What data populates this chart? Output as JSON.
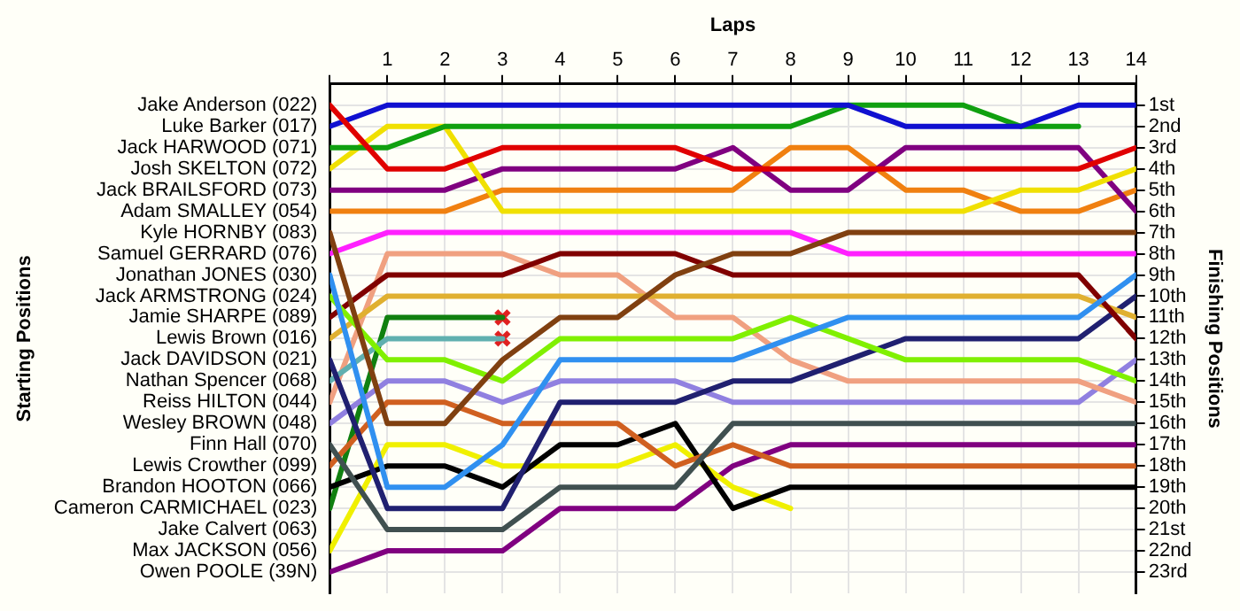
{
  "chart_data": {
    "type": "line",
    "xlabel": "Laps",
    "ylabel": "Finishing Positions",
    "annotations": [
      "Starting Positions"
    ],
    "x": [
      0,
      1,
      2,
      3,
      4,
      5,
      6,
      7,
      8,
      9,
      10,
      11,
      12,
      13,
      14
    ],
    "xlim": [
      0,
      14
    ],
    "xticks": [
      {
        "value": 0,
        "label": null
      },
      1,
      2,
      3,
      4,
      5,
      6,
      7,
      8,
      9,
      10,
      11,
      12,
      13,
      14
    ],
    "y2_categories": [
      "Jake Anderson (022)",
      "Luke Barker (017)",
      "Jack HARWOOD (071)",
      "Josh SKELTON (072)",
      "Jack BRAILSFORD (073)",
      "Adam SMALLEY (054)",
      "Kyle HORNBY (083)",
      "Samuel GERRARD (076)",
      "Jonathan JONES (030)",
      "Jack ARMSTRONG (024)",
      "Jamie SHARPE (089)",
      "Lewis Brown (016)",
      "Jack DAVIDSON (021)",
      "Nathan Spencer (068)",
      "Reiss HILTON (044)",
      "Wesley BROWN (048)",
      "Finn Hall (070)",
      "Lewis Crowther (099)",
      "Brandon HOOTON (066)",
      "Cameron CARMICHAEL (023)",
      "Jake Calvert (063)",
      "Max JACKSON (056)",
      "Owen POOLE (39N)"
    ],
    "ylim": [
      24,
      0
    ],
    "yticks": [
      {
        "value": 1,
        "label": "1st"
      },
      {
        "value": 2,
        "label": "2nd"
      },
      {
        "value": 3,
        "label": "3rd"
      },
      {
        "value": 4,
        "label": "4th"
      },
      {
        "value": 5,
        "label": "5th"
      },
      {
        "value": 6,
        "label": "6th"
      },
      {
        "value": 7,
        "label": "7th"
      },
      {
        "value": 8,
        "label": "8th"
      },
      {
        "value": 9,
        "label": "9th"
      },
      {
        "value": 10,
        "label": "10th"
      },
      {
        "value": 11,
        "label": "11th"
      },
      {
        "value": 12,
        "label": "12th"
      },
      {
        "value": 13,
        "label": "13th"
      },
      {
        "value": 14,
        "label": "14th"
      },
      {
        "value": 15,
        "label": "15th"
      },
      {
        "value": 16,
        "label": "16th"
      },
      {
        "value": 17,
        "label": "17th"
      },
      {
        "value": 18,
        "label": "18th"
      },
      {
        "value": 19,
        "label": "19th"
      },
      {
        "value": 20,
        "label": "20th"
      },
      {
        "value": 21,
        "label": "21st"
      },
      {
        "value": 22,
        "label": "22nd"
      },
      {
        "value": 23,
        "label": "23rd"
      }
    ],
    "grid": true,
    "series": [
      {
        "color": "#e00000",
        "values": [
          1,
          4,
          4,
          3,
          3,
          3,
          3,
          4,
          4,
          4,
          4,
          4,
          4,
          4,
          3
        ]
      },
      {
        "color": "#1010d0",
        "values": [
          2,
          1,
          1,
          1,
          1,
          1,
          1,
          1,
          1,
          1,
          2,
          2,
          2,
          1,
          1
        ]
      },
      {
        "color": "#10a010",
        "values": [
          3,
          3,
          2,
          2,
          2,
          2,
          2,
          2,
          2,
          1,
          1,
          1,
          2,
          2,
          null
        ]
      },
      {
        "color": "#f0e000",
        "values": [
          4,
          2,
          2,
          6,
          6,
          6,
          6,
          6,
          6,
          6,
          6,
          6,
          5,
          5,
          4
        ]
      },
      {
        "color": "#800080",
        "values": [
          5,
          5,
          5,
          4,
          4,
          4,
          4,
          3,
          5,
          5,
          3,
          3,
          3,
          3,
          6
        ]
      },
      {
        "color": "#f08010",
        "values": [
          6,
          6,
          6,
          5,
          5,
          5,
          5,
          5,
          3,
          3,
          5,
          5,
          6,
          6,
          5
        ]
      },
      {
        "color": "#804010",
        "values": [
          7,
          16,
          16,
          13,
          11,
          11,
          9,
          8,
          8,
          7,
          7,
          7,
          7,
          7,
          7
        ]
      },
      {
        "color": "#ff20ff",
        "values": [
          8,
          7,
          7,
          7,
          7,
          7,
          7,
          7,
          7,
          8,
          8,
          8,
          8,
          8,
          8
        ]
      },
      {
        "color": "#3090f0",
        "values": [
          9,
          19,
          19,
          17,
          13,
          13,
          13,
          13,
          12,
          11,
          11,
          11,
          11,
          11,
          9
        ]
      },
      {
        "color": "#80f000",
        "values": [
          10,
          13,
          13,
          14,
          12,
          12,
          12,
          12,
          11,
          12,
          13,
          13,
          13,
          13,
          14
        ]
      },
      {
        "color": "#800000",
        "values": [
          11,
          9,
          9,
          9,
          8,
          8,
          8,
          9,
          9,
          9,
          9,
          9,
          9,
          9,
          12
        ]
      },
      {
        "color": "#e0b030",
        "values": [
          12,
          10,
          10,
          10,
          10,
          10,
          10,
          10,
          10,
          10,
          10,
          10,
          10,
          10,
          11
        ]
      },
      {
        "color": "#202070",
        "values": [
          13,
          20,
          20,
          20,
          15,
          15,
          15,
          14,
          14,
          13,
          12,
          12,
          12,
          12,
          10
        ]
      },
      {
        "color": "#60b0b0",
        "values": [
          14,
          12,
          12,
          12,
          null,
          null,
          null,
          null,
          null,
          null,
          null,
          null,
          null,
          null,
          null
        ]
      },
      {
        "color": "#f0a080",
        "values": [
          15,
          8,
          8,
          8,
          9,
          9,
          11,
          11,
          13,
          14,
          14,
          14,
          14,
          14,
          15
        ]
      },
      {
        "color": "#9080e0",
        "values": [
          16,
          14,
          14,
          15,
          14,
          14,
          14,
          15,
          15,
          15,
          15,
          15,
          15,
          15,
          13
        ]
      },
      {
        "color": "#405050",
        "values": [
          17,
          21,
          21,
          21,
          19,
          19,
          19,
          16,
          16,
          16,
          16,
          16,
          16,
          16,
          16
        ]
      },
      {
        "color": "#d06020",
        "values": [
          18,
          15,
          15,
          16,
          16,
          16,
          18,
          17,
          18,
          18,
          18,
          18,
          18,
          18,
          18
        ]
      },
      {
        "color": "#000000",
        "values": [
          19,
          18,
          18,
          19,
          17,
          17,
          16,
          20,
          19,
          19,
          19,
          19,
          19,
          19,
          19
        ]
      },
      {
        "color": "#108010",
        "values": [
          20,
          11,
          11,
          11,
          null,
          null,
          null,
          null,
          null,
          null,
          null,
          null,
          null,
          null,
          null
        ]
      },
      {
        "color": "#f0f000",
        "values": [
          22,
          17,
          17,
          18,
          18,
          18,
          17,
          19,
          20,
          null,
          null,
          null,
          null,
          null,
          null
        ]
      },
      {
        "color": "#800080",
        "values": [
          23,
          22,
          22,
          22,
          20,
          20,
          20,
          18,
          17,
          17,
          17,
          17,
          17,
          17,
          17
        ]
      },
      {
        "type": "scatter",
        "color": "#e02020",
        "marker": "cross",
        "x": [
          3,
          3
        ],
        "values": [
          11,
          12
        ]
      }
    ]
  }
}
